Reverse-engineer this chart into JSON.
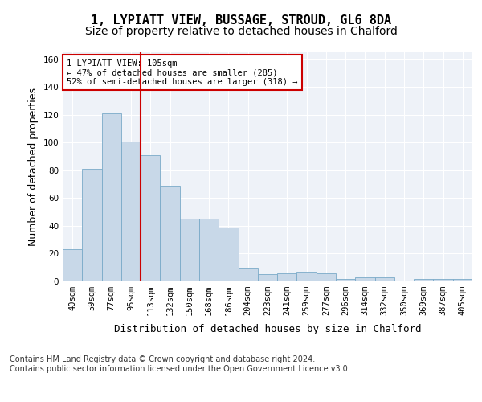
{
  "title_line1": "1, LYPIATT VIEW, BUSSAGE, STROUD, GL6 8DA",
  "title_line2": "Size of property relative to detached houses in Chalford",
  "xlabel": "Distribution of detached houses by size in Chalford",
  "ylabel": "Number of detached properties",
  "bar_color": "#c8d8e8",
  "bar_edge_color": "#7aaac8",
  "vline_color": "#cc0000",
  "annotation_text": "1 LYPIATT VIEW: 105sqm\n← 47% of detached houses are smaller (285)\n52% of semi-detached houses are larger (318) →",
  "annotation_box_color": "#ffffff",
  "annotation_box_edge": "#cc0000",
  "categories": [
    "40sqm",
    "59sqm",
    "77sqm",
    "95sqm",
    "113sqm",
    "132sqm",
    "150sqm",
    "168sqm",
    "186sqm",
    "204sqm",
    "223sqm",
    "241sqm",
    "259sqm",
    "277sqm",
    "296sqm",
    "314sqm",
    "332sqm",
    "350sqm",
    "369sqm",
    "387sqm",
    "405sqm"
  ],
  "values": [
    23,
    81,
    121,
    101,
    91,
    69,
    45,
    45,
    39,
    10,
    5,
    6,
    7,
    6,
    2,
    3,
    3,
    0,
    2,
    2,
    2
  ],
  "ylim": [
    0,
    165
  ],
  "yticks": [
    0,
    20,
    40,
    60,
    80,
    100,
    120,
    140,
    160
  ],
  "background_color": "#eef2f8",
  "footer_text": "Contains HM Land Registry data © Crown copyright and database right 2024.\nContains public sector information licensed under the Open Government Licence v3.0.",
  "title_fontsize": 11,
  "subtitle_fontsize": 10,
  "axis_label_fontsize": 9,
  "tick_fontsize": 7.5,
  "footer_fontsize": 7
}
